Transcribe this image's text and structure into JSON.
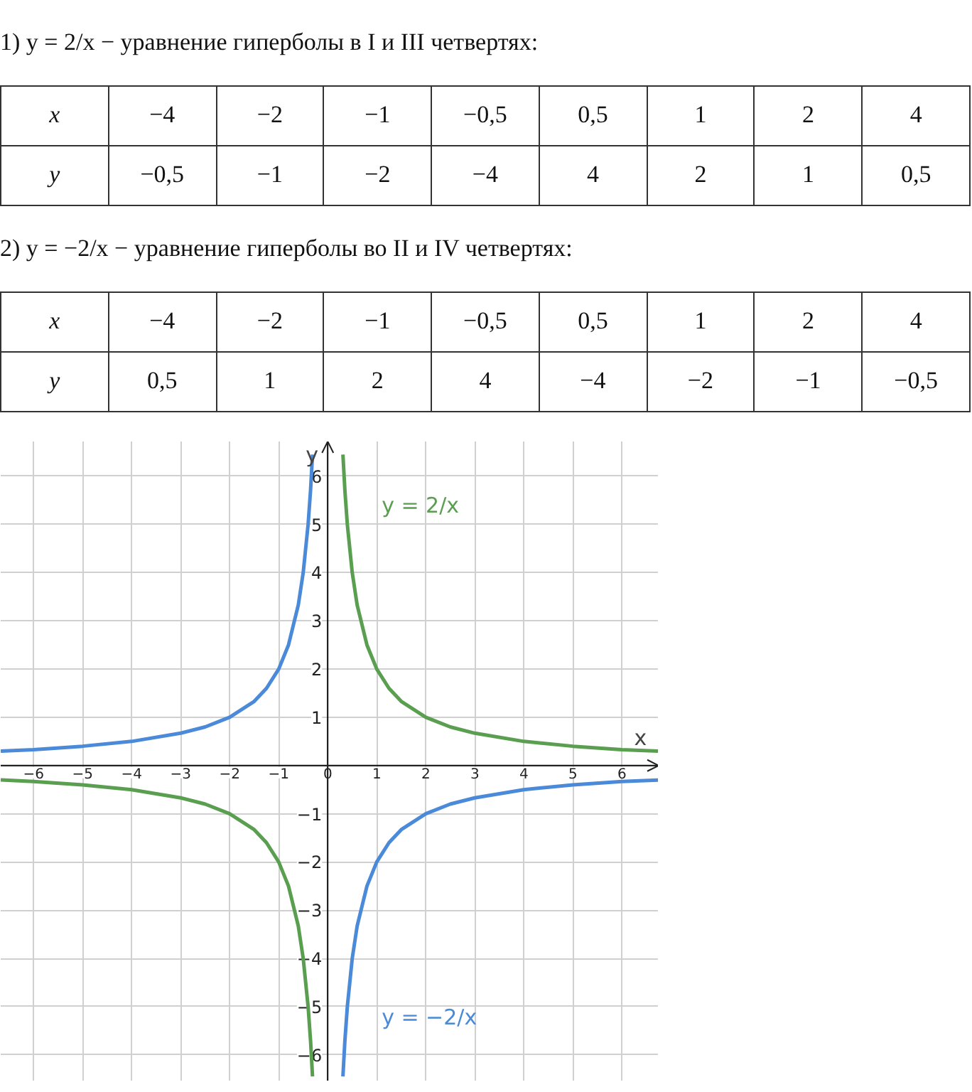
{
  "chart_data": {
    "type": "line",
    "annotations": [
      "1) y = 2/x  − уравнение гиперболы в I и III четвертях:",
      "x",
      "−4",
      "−2",
      "−1",
      "−0,5",
      "0,5",
      "1",
      "2",
      "4",
      "y",
      "−0,5",
      "−1",
      "−2",
      "−4",
      "4",
      "2",
      "1",
      "0,5",
      "2) y = −2/x  − уравнение гиперболы во II и IV четвертях:",
      "x",
      "−4",
      "−2",
      "−1",
      "−0,5",
      "0,5",
      "1",
      "2",
      "4",
      "y",
      "0,5",
      "1",
      "2",
      "4",
      "−4",
      "−2",
      "−1",
      "−0,5"
    ],
    "xlabel": "x",
    "ylabel": "y",
    "xlim": [
      -6.67,
      6.75
    ],
    "ylim": [
      -6.55,
      6.72
    ],
    "xticks": [
      -6,
      -5,
      -4,
      -3,
      -2,
      -1,
      {
        "value": 0,
        "label": "0"
      },
      1,
      2,
      3,
      4,
      5,
      6
    ],
    "yticks": [
      -6,
      -5,
      -4,
      -3,
      -2,
      -1,
      1,
      2,
      3,
      4,
      5,
      6
    ],
    "grid": true,
    "marker": "none",
    "line_style": "solid",
    "series": [
      {
        "name": "y = 2/x",
        "color": "#5a9e50",
        "x": [
          -6.67,
          -6,
          -5,
          -4,
          -3,
          -2.5,
          -2,
          -1.5,
          -1.25,
          -1,
          -0.8,
          -0.6,
          -0.5,
          -0.4,
          -0.35,
          -0.31,
          null,
          0.31,
          0.35,
          0.4,
          0.5,
          0.6,
          0.8,
          1,
          1.25,
          1.5,
          2,
          2.5,
          3,
          4,
          5,
          6,
          6.75
        ],
        "values": [
          -0.3,
          -0.33,
          -0.4,
          -0.5,
          -0.67,
          -0.8,
          -1,
          -1.33,
          -1.6,
          -2,
          -2.5,
          -3.33,
          -4,
          -5,
          -5.71,
          -6.45,
          null,
          6.45,
          5.71,
          5,
          4,
          3.33,
          2.5,
          2,
          1.6,
          1.33,
          1,
          0.8,
          0.67,
          0.5,
          0.4,
          0.33,
          0.3
        ]
      },
      {
        "name": "y = −2/x",
        "color": "#4a8ad8",
        "x": [
          -6.67,
          -6,
          -5,
          -4,
          -3,
          -2.5,
          -2,
          -1.5,
          -1.25,
          -1,
          -0.8,
          -0.6,
          -0.5,
          -0.4,
          -0.35,
          -0.31,
          null,
          0.31,
          0.35,
          0.4,
          0.5,
          0.6,
          0.8,
          1,
          1.25,
          1.5,
          2,
          2.5,
          3,
          4,
          5,
          6,
          6.75
        ],
        "values": [
          0.3,
          0.33,
          0.4,
          0.5,
          0.67,
          0.8,
          1,
          1.33,
          1.6,
          2,
          2.5,
          3.33,
          4,
          5,
          5.71,
          6.45,
          null,
          -6.45,
          -5.71,
          -5,
          -4,
          -3.33,
          -2.5,
          -2,
          -1.6,
          -1.33,
          -1,
          -0.8,
          -0.67,
          -0.5,
          -0.4,
          -0.33,
          -0.3
        ]
      }
    ]
  }
}
